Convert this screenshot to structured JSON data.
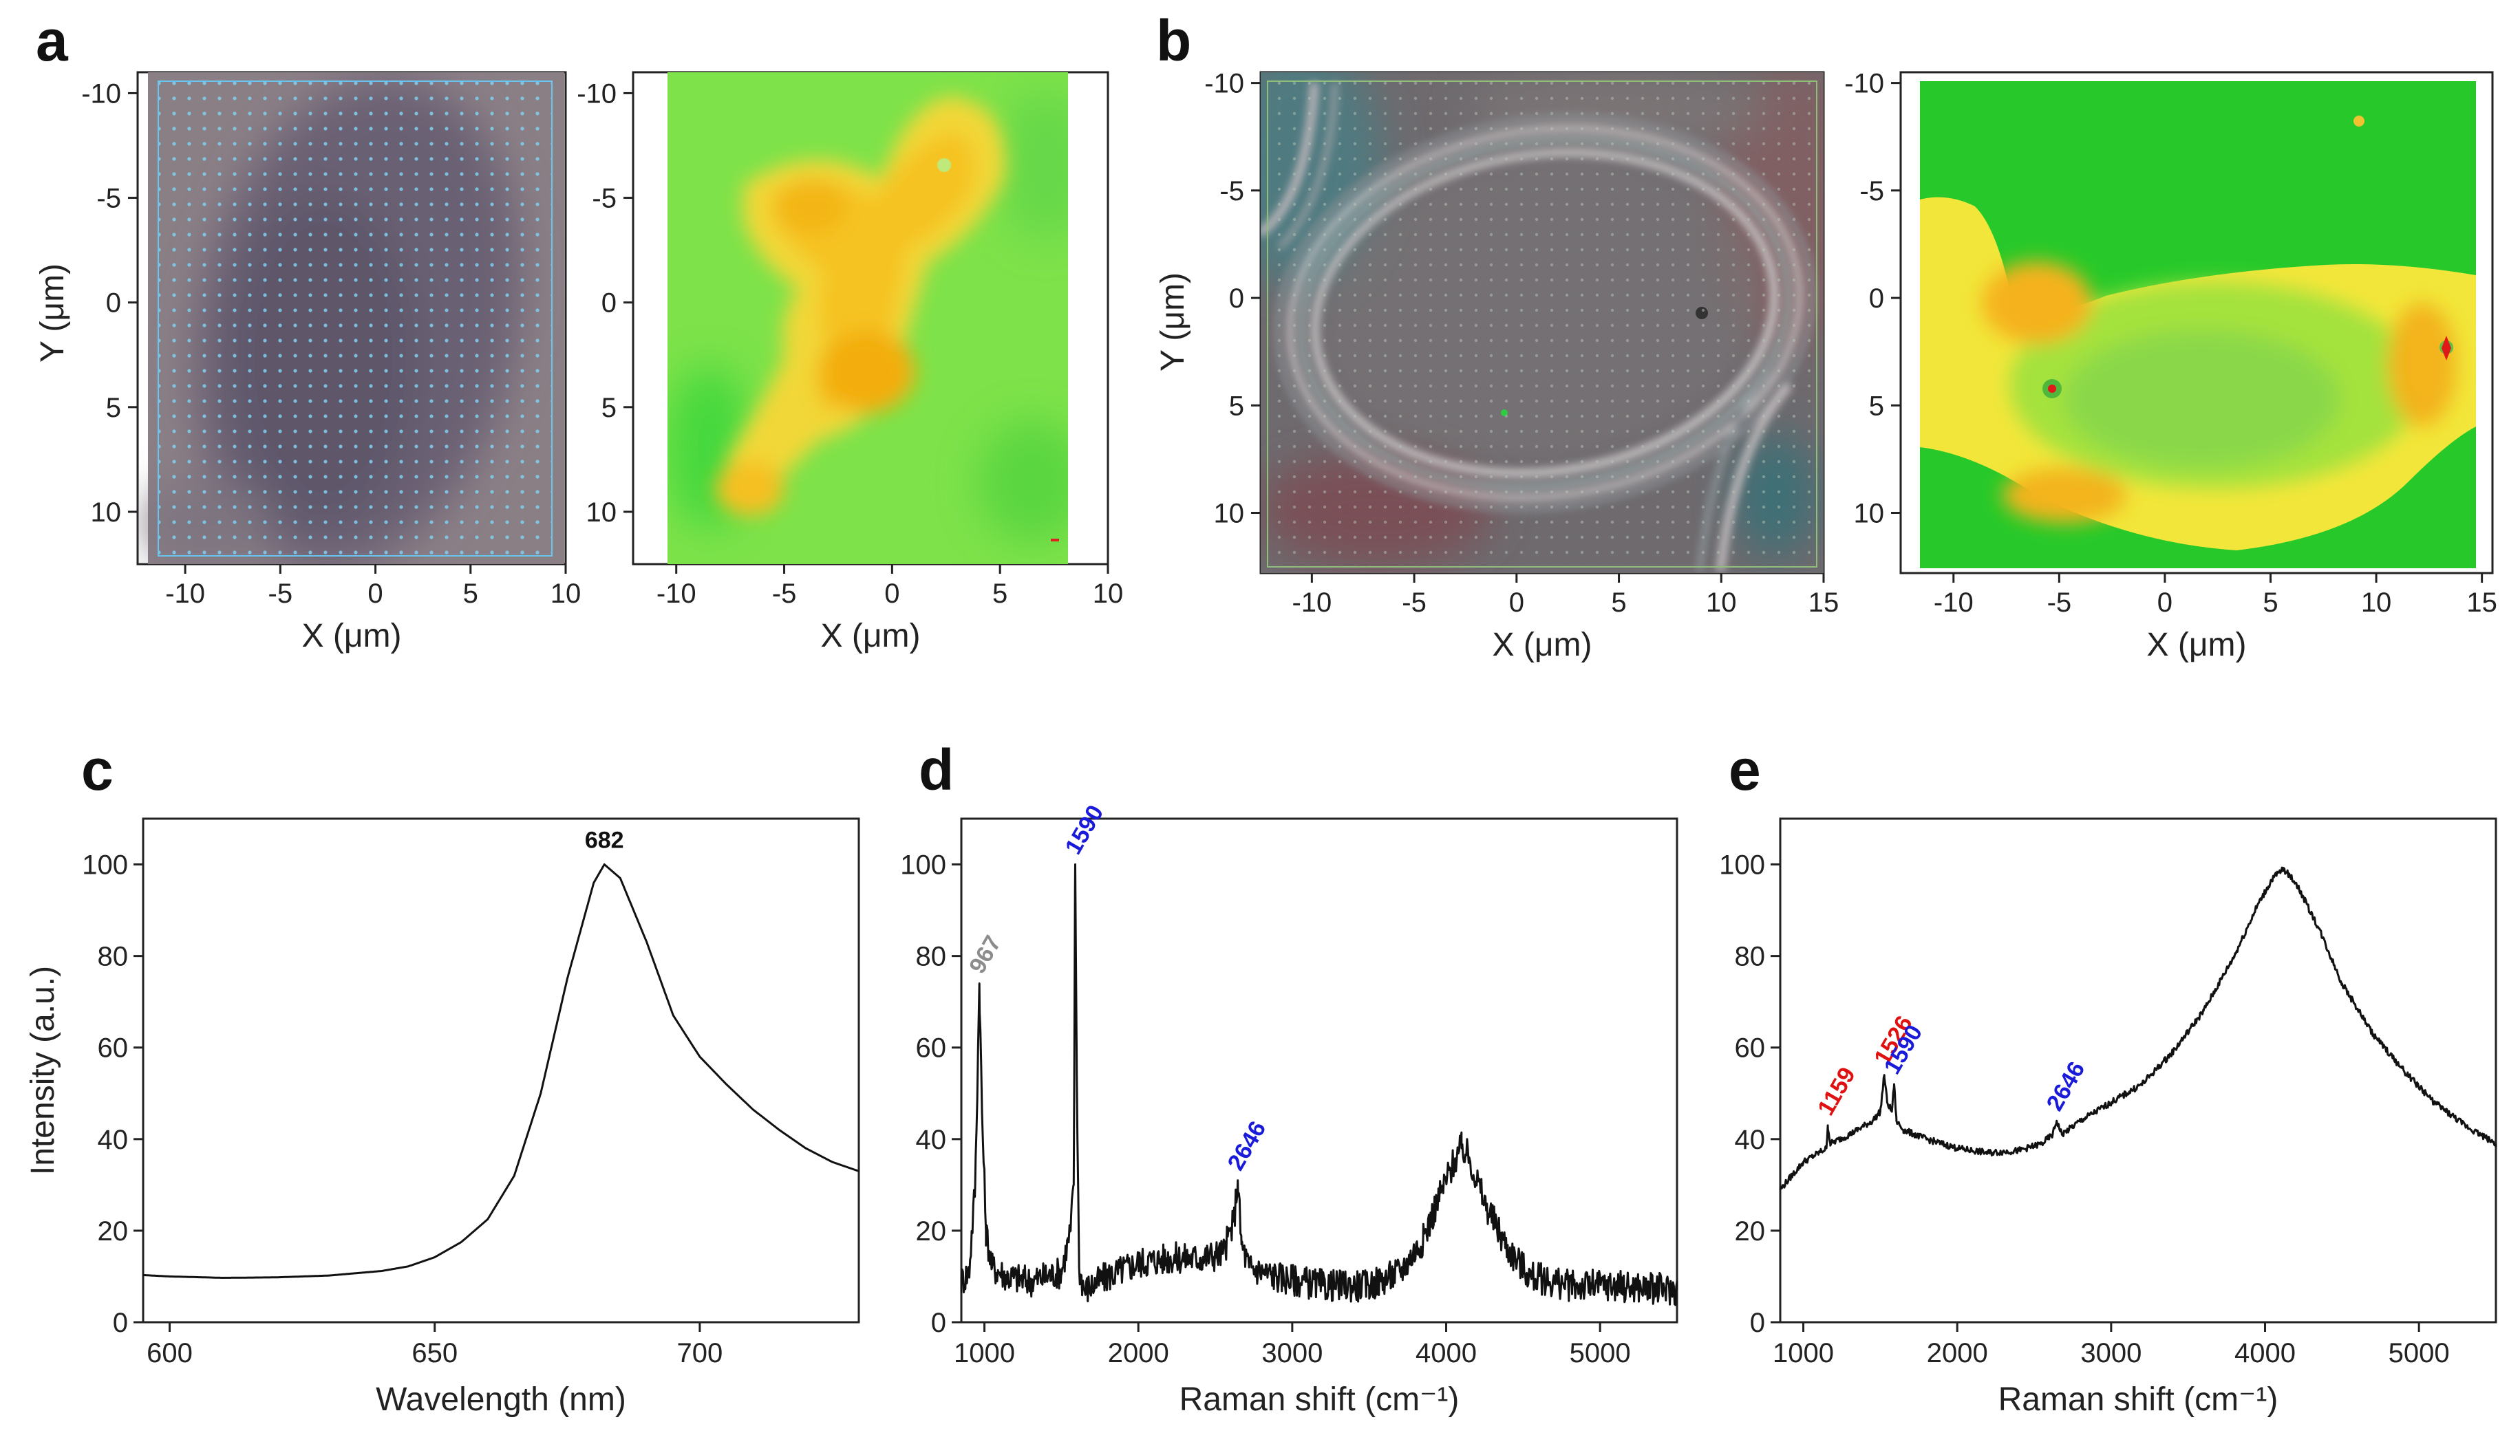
{
  "figure": {
    "panels": {
      "a": {
        "label": "a",
        "ylabel": "Y (μm)",
        "xlabel": "X (μm)"
      },
      "b": {
        "label": "b",
        "ylabel": "Y (μm)",
        "xlabel": "X (μm)"
      },
      "c": {
        "label": "c"
      },
      "d": {
        "label": "d"
      },
      "e": {
        "label": "e"
      }
    },
    "colors": {
      "line": "#111111",
      "blue_peak": "#1a1adb",
      "red_peak": "#e01010",
      "gray_peak": "#8c8c8c",
      "map_green": "#38d838",
      "map_yellow": "#f0e030",
      "map_orange": "#f5b500"
    }
  },
  "chart_data": [
    {
      "panel": "a-left",
      "type": "heatmap",
      "description_source": "optical image with scan grid",
      "xlabel": "X (μm)",
      "ylabel": "Y (μm)",
      "xlim": [
        -12.5,
        10
      ],
      "ylim": [
        12.5,
        -11
      ],
      "xticks": [
        "-10",
        "-5",
        "0",
        "5",
        "10"
      ],
      "yticks": [
        "-10",
        "-5",
        "0",
        "5",
        "10"
      ]
    },
    {
      "panel": "a-right",
      "type": "heatmap",
      "xlabel": "X (μm)",
      "xlim": [
        -12,
        10
      ],
      "ylim": [
        12.5,
        -11
      ],
      "xticks": [
        "-10",
        "-5",
        "0",
        "5",
        "10"
      ],
      "yticks": [
        "-10",
        "-5",
        "0",
        "5",
        "10"
      ]
    },
    {
      "panel": "b-left",
      "type": "heatmap",
      "xlabel": "X (μm)",
      "ylabel": "Y (μm)",
      "xlim": [
        -12.5,
        15
      ],
      "ylim": [
        12.8,
        -10.5
      ],
      "xticks": [
        "-10",
        "-5",
        "0",
        "5",
        "10",
        "15"
      ],
      "yticks": [
        "-10",
        "-5",
        "0",
        "5",
        "10"
      ]
    },
    {
      "panel": "b-right",
      "type": "heatmap",
      "xlabel": "X (μm)",
      "xlim": [
        -12.5,
        15.5
      ],
      "ylim": [
        12.8,
        -10.5
      ],
      "xticks": [
        "-10",
        "-5",
        "0",
        "5",
        "10",
        "15"
      ],
      "yticks": [
        "-10",
        "-5",
        "0",
        "5",
        "10"
      ]
    },
    {
      "panel": "c",
      "type": "line",
      "xlabel": "Wavelength (nm)",
      "ylabel": "Intensity (a.u.)",
      "xlim": [
        595,
        730
      ],
      "ylim": [
        0,
        110
      ],
      "xticks": [
        600,
        650,
        700
      ],
      "yticks": [
        0,
        20,
        40,
        60,
        80,
        100
      ],
      "x": [
        595,
        600,
        610,
        620,
        630,
        640,
        645,
        650,
        655,
        660,
        665,
        670,
        675,
        680,
        682,
        685,
        690,
        695,
        700,
        705,
        710,
        715,
        720,
        725,
        730
      ],
      "y": [
        10.3,
        10,
        9.7,
        9.8,
        10.2,
        11.2,
        12.2,
        14.2,
        17.5,
        22.5,
        32,
        50,
        75,
        96,
        100,
        97,
        83,
        67,
        58,
        52,
        46.5,
        42,
        38,
        35,
        33
      ],
      "annotations": [
        {
          "text": "682",
          "x": 682,
          "y": 100,
          "color": "#111111"
        }
      ]
    },
    {
      "panel": "d",
      "type": "line",
      "xlabel": "Raman shift (cm⁻¹)",
      "ylabel": "",
      "xlim": [
        850,
        5500
      ],
      "ylim": [
        0,
        110
      ],
      "xticks": [
        1000,
        2000,
        3000,
        4000,
        5000
      ],
      "yticks": [
        0,
        20,
        40,
        60,
        80,
        100
      ],
      "x": [
        850,
        900,
        940,
        960,
        967,
        985,
        1010,
        1050,
        1150,
        1300,
        1500,
        1560,
        1580,
        1590,
        1600,
        1615,
        1650,
        1800,
        2000,
        2200,
        2400,
        2550,
        2620,
        2646,
        2670,
        2720,
        2900,
        3200,
        3500,
        3700,
        3850,
        3950,
        4050,
        4100,
        4150,
        4250,
        4400,
        4550,
        4800,
        5100,
        5500
      ],
      "y": [
        9,
        11,
        30,
        62,
        74,
        45,
        20,
        12,
        10,
        9,
        11,
        20,
        30,
        100,
        55,
        12,
        7,
        10,
        13,
        14,
        14,
        15,
        22,
        31,
        17,
        12,
        10,
        8,
        8,
        11,
        18,
        27,
        35,
        38,
        36,
        26,
        16,
        10,
        8,
        8,
        7
      ],
      "noise": 3.5,
      "annotations": [
        {
          "text": "967",
          "x": 967,
          "y": 74,
          "color": "#8c8c8c"
        },
        {
          "text": "1590",
          "x": 1590,
          "y": 100,
          "color": "#1a1adb"
        },
        {
          "text": "2646",
          "x": 2646,
          "y": 31,
          "color": "#1a1adb"
        }
      ]
    },
    {
      "panel": "e",
      "type": "line",
      "xlabel": "Raman shift (cm⁻¹)",
      "ylabel": "",
      "xlim": [
        850,
        5500
      ],
      "ylim": [
        0,
        110
      ],
      "xticks": [
        1000,
        2000,
        3000,
        4000,
        5000
      ],
      "yticks": [
        0,
        20,
        40,
        60,
        80,
        100
      ],
      "x": [
        850,
        1000,
        1100,
        1150,
        1159,
        1175,
        1300,
        1450,
        1500,
        1526,
        1545,
        1575,
        1590,
        1605,
        1650,
        1800,
        2000,
        2200,
        2400,
        2550,
        2620,
        2646,
        2680,
        2800,
        3000,
        3200,
        3400,
        3600,
        3800,
        3950,
        4050,
        4120,
        4200,
        4350,
        4500,
        4700,
        4900,
        5100,
        5300,
        5500
      ],
      "y": [
        29,
        35,
        37,
        38,
        43,
        39,
        41,
        44,
        46,
        54,
        48,
        46,
        52,
        44,
        42,
        40,
        38,
        37,
        37.5,
        39,
        41,
        44,
        41,
        44,
        48,
        52,
        59,
        68,
        80,
        91,
        97,
        99,
        96,
        86,
        74,
        63,
        55,
        48,
        43,
        39
      ],
      "noise": 0.7,
      "annotations": [
        {
          "text": "1159",
          "x": 1159,
          "y": 43,
          "color": "#e01010"
        },
        {
          "text": "1526",
          "x": 1526,
          "y": 54,
          "color": "#e01010"
        },
        {
          "text": "1590",
          "x": 1590,
          "y": 52,
          "color": "#1a1adb"
        },
        {
          "text": "2646",
          "x": 2646,
          "y": 44,
          "color": "#1a1adb"
        }
      ]
    }
  ]
}
